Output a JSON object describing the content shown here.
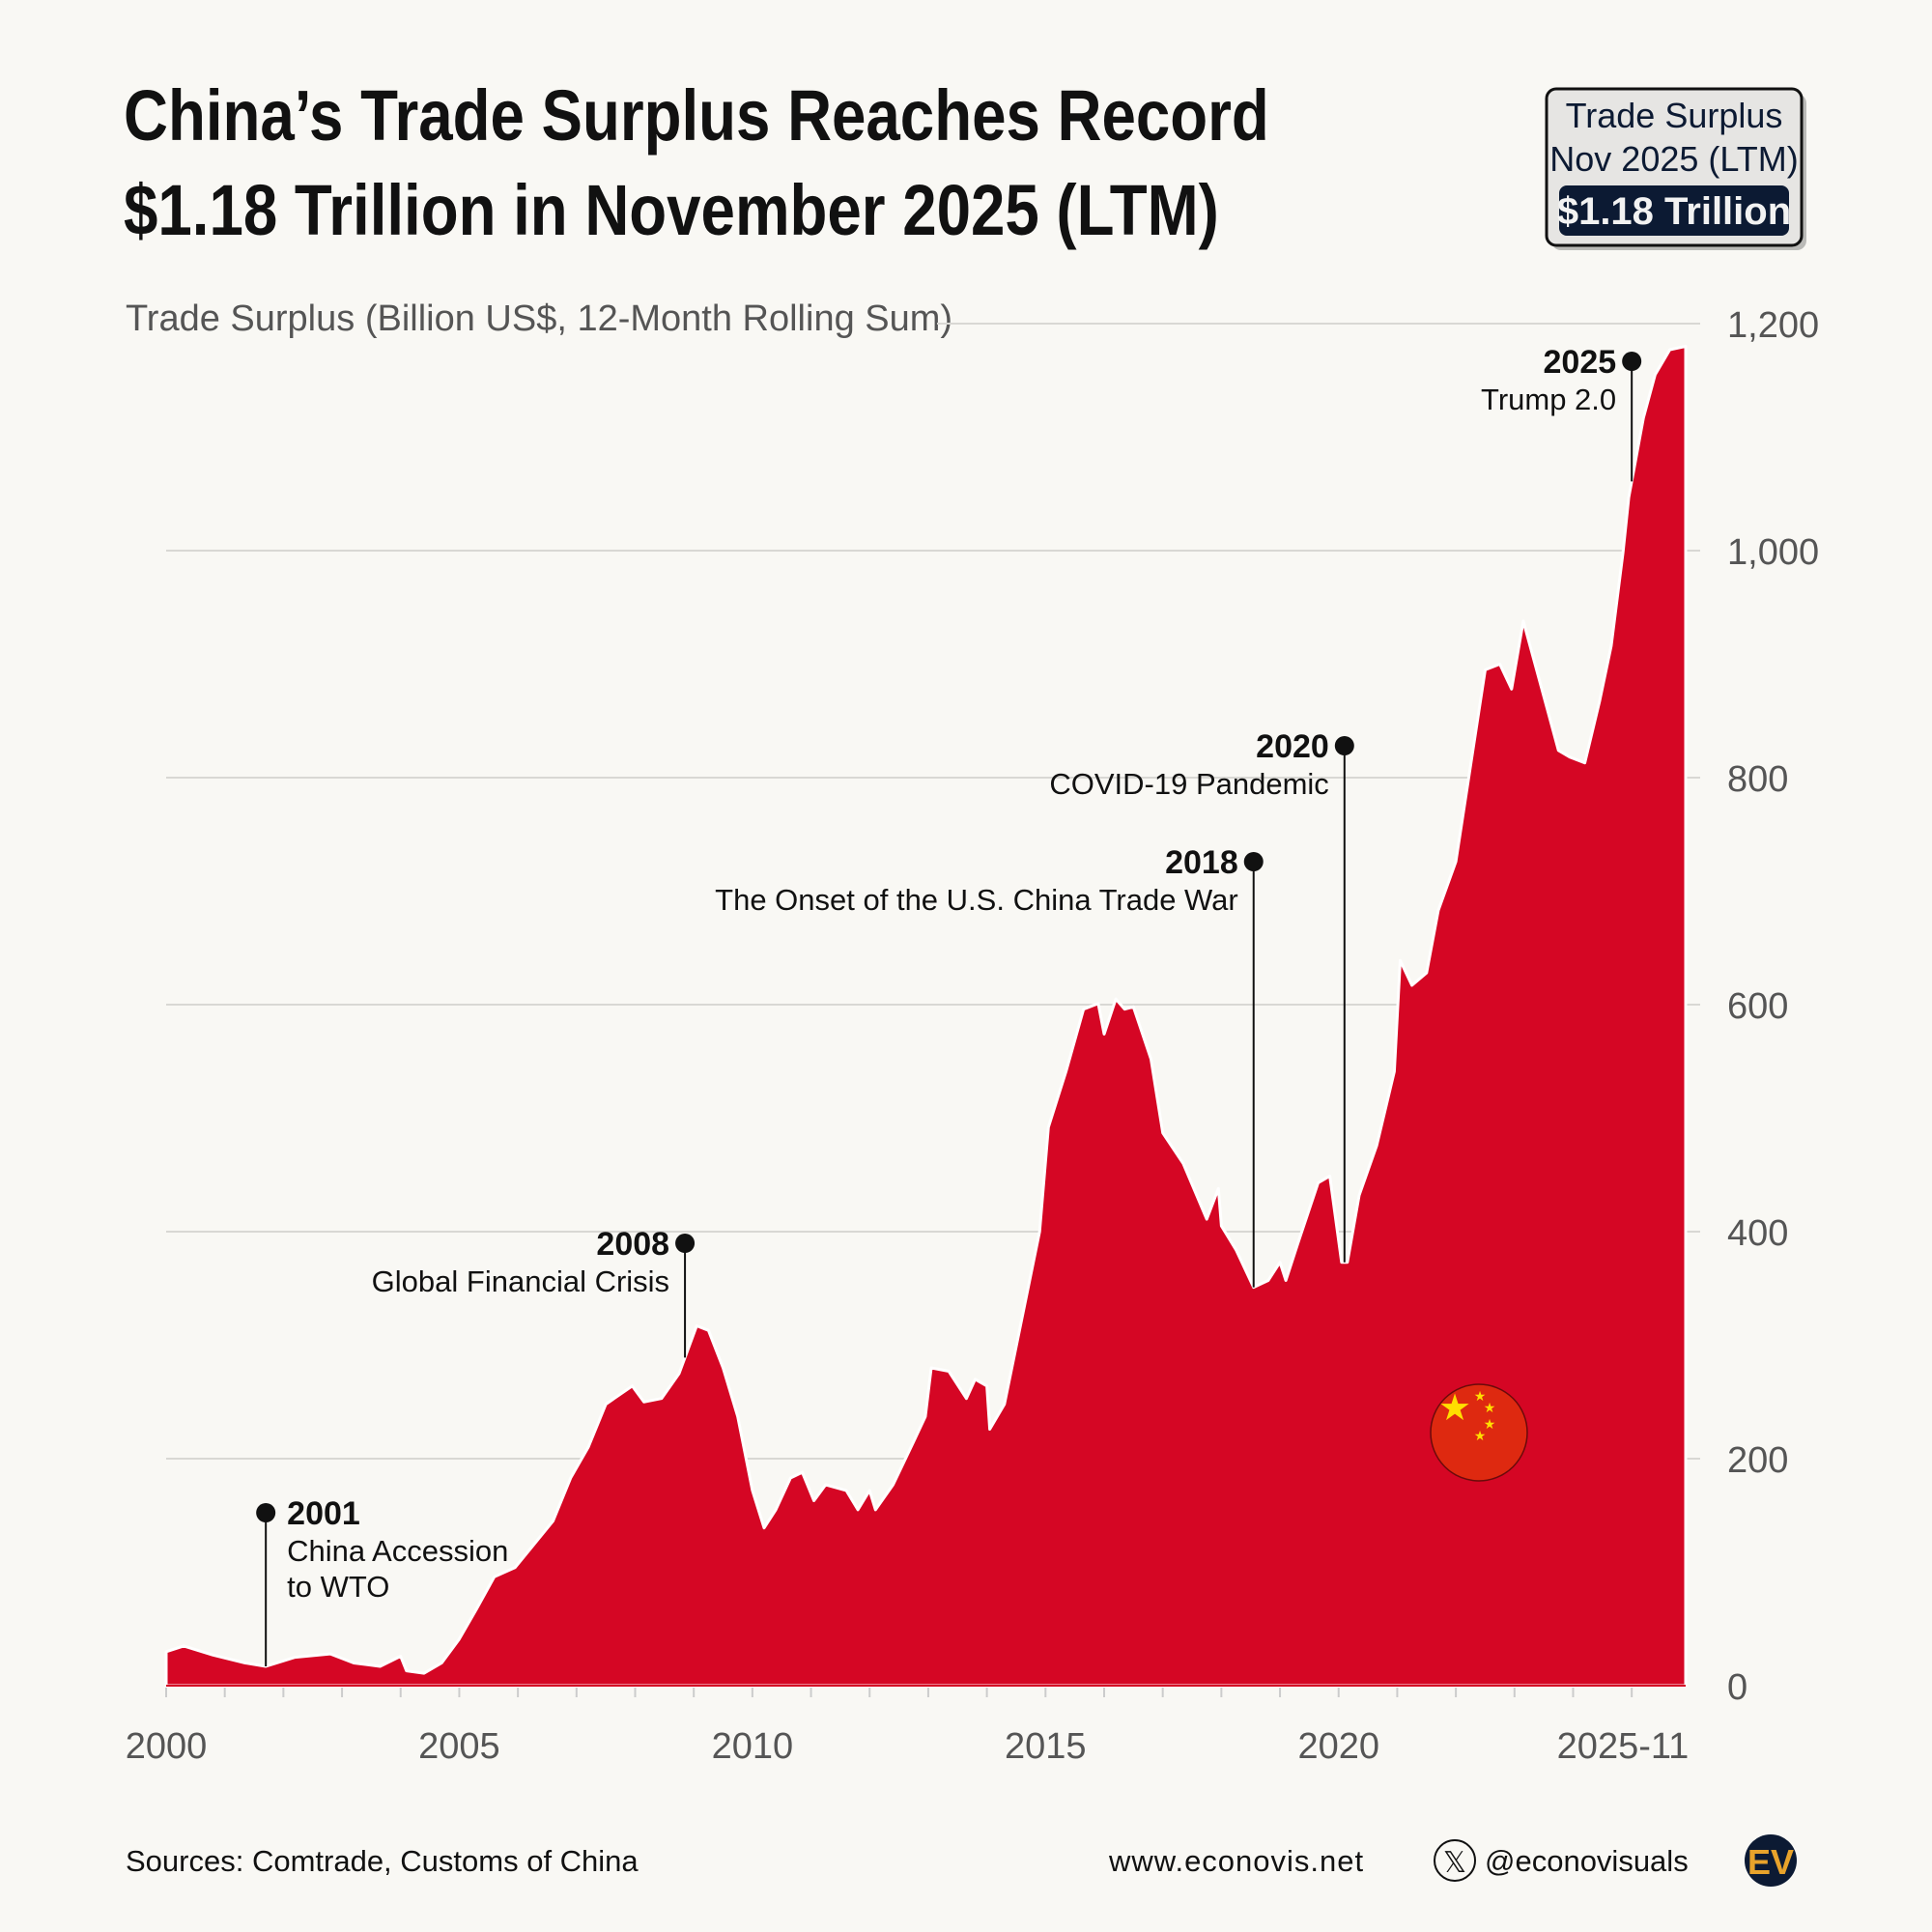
{
  "header": {
    "title_line1": "China’s Trade Surplus Reaches Record",
    "title_line2": "$1.18 Trillion in November 2025 (LTM)"
  },
  "callout_box": {
    "line1": "Trade Surplus",
    "line2": "Nov 2025 (LTM)",
    "value": "$1.18 Trillion"
  },
  "colors": {
    "area": "#d50624",
    "background": "#f9f8f4",
    "callout_dark": "#0c1a33",
    "logo_gold": "#e8a32b"
  },
  "chart_data": {
    "type": "area",
    "title": "China’s Trade Surplus Reaches Record $1.18 Trillion in November 2025 (LTM)",
    "ylabel": "Trade Surplus (Billion US$, 12-Month Rolling Sum)",
    "xlabel": "",
    "xlim": [
      2000,
      2025.92
    ],
    "ylim": [
      0,
      1200
    ],
    "grid": true,
    "y_ticks": [
      "0",
      "200",
      "400",
      "600",
      "800",
      "1,000",
      "1,200"
    ],
    "y_tick_values": [
      0,
      200,
      400,
      600,
      800,
      1000,
      1200
    ],
    "x_ticks": [
      "2000",
      "2005",
      "2010",
      "2015",
      "2020",
      "2025-11"
    ],
    "x_tick_values": [
      2000,
      2005,
      2010,
      2015,
      2020,
      2025.92
    ],
    "series": [
      {
        "x": [
          2000.0,
          2000.3,
          2000.8,
          2001.35,
          2001.7,
          2002.2,
          2002.8,
          2003.2,
          2003.65,
          2004.0,
          2004.1,
          2004.4,
          2004.7,
          2005.0,
          2005.3,
          2005.6,
          2005.95,
          2006.25,
          2006.6,
          2006.9,
          2007.2,
          2007.5,
          2007.95,
          2008.15,
          2008.45,
          2008.75,
          2009.05,
          2009.25,
          2009.5,
          2009.75,
          2010.0,
          2010.2,
          2010.4,
          2010.65,
          2010.85,
          2011.05,
          2011.25,
          2011.6,
          2011.8,
          2012.0,
          2012.1,
          2012.4,
          2012.75,
          2012.95,
          2013.05,
          2013.35,
          2013.65,
          2013.8,
          2014.0,
          2014.05,
          2014.3,
          2014.6,
          2014.9,
          2015.05,
          2015.35,
          2015.65,
          2015.9,
          2016.0,
          2016.2,
          2016.35,
          2016.5,
          2016.8,
          2017.0,
          2017.35,
          2017.75,
          2017.95,
          2018.0,
          2018.25,
          2018.55,
          2018.8,
          2019.0,
          2019.1,
          2019.3,
          2019.65,
          2019.85,
          2020.05,
          2020.15,
          2020.35,
          2020.65,
          2020.95,
          2021.05,
          2021.25,
          2021.5,
          2021.7,
          2022.0,
          2022.5,
          2022.75,
          2022.95,
          2023.15,
          2023.55,
          2023.75,
          2023.95,
          2024.2,
          2024.45,
          2024.65,
          2024.85,
          2024.95,
          2025.2,
          2025.4,
          2025.65,
          2025.92
        ],
        "y": [
          30,
          35,
          27,
          20,
          17,
          25,
          28,
          20,
          17,
          26,
          13,
          11,
          20,
          41,
          68,
          96,
          104,
          123,
          145,
          183,
          210,
          248,
          264,
          250,
          253,
          275,
          317,
          313,
          280,
          237,
          172,
          139,
          155,
          183,
          188,
          163,
          177,
          172,
          155,
          172,
          155,
          177,
          215,
          237,
          280,
          277,
          253,
          270,
          264,
          226,
          248,
          324,
          400,
          492,
          541,
          596,
          601,
          574,
          605,
          596,
          598,
          552,
          487,
          460,
          411,
          438,
          405,
          384,
          351,
          357,
          373,
          357,
          389,
          443,
          449,
          373,
          373,
          432,
          476,
          541,
          639,
          617,
          628,
          683,
          726,
          895,
          900,
          878,
          938,
          862,
          824,
          818,
          813,
          867,
          916,
          998,
          1047,
          1117,
          1155,
          1177,
          1180
        ]
      }
    ],
    "annotations": [
      {
        "year": "2001",
        "label_lines": [
          "China Accession",
          "to WTO"
        ],
        "x": 2001.7
      },
      {
        "year": "2008",
        "label_lines": [
          "Global Financial Crisis"
        ],
        "x": 2008.85
      },
      {
        "year": "2018",
        "label_lines": [
          "The Onset of the U.S. China Trade War"
        ],
        "x": 2018.55
      },
      {
        "year": "2020",
        "label_lines": [
          "COVID-19 Pandemic"
        ],
        "x": 2020.1
      },
      {
        "year": "2025",
        "label_lines": [
          "Trump 2.0"
        ],
        "x": 2025.0
      }
    ]
  },
  "footer": {
    "sources": "Sources: Comtrade, Customs of China",
    "website": "www.econovis.net",
    "handle": "@econovisuals",
    "logo_text": "EV"
  }
}
